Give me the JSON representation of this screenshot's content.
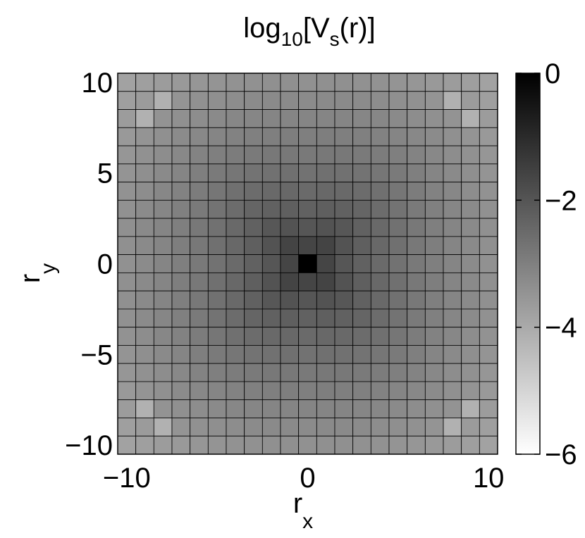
{
  "chart_data": {
    "type": "heatmap",
    "title": {
      "base": "log",
      "sub1": "10",
      "mid": "[V",
      "sub2": "s",
      "end": "(r)]"
    },
    "xlabel": {
      "base": "r",
      "sub": "x"
    },
    "ylabel": {
      "base": "r",
      "sub": "y"
    },
    "x_range": [
      -10,
      10
    ],
    "y_range": [
      -10,
      10
    ],
    "x_ticks": [
      {
        "value": -10,
        "label": "−10"
      },
      {
        "value": 0,
        "label": "0"
      },
      {
        "value": 10,
        "label": "10"
      }
    ],
    "y_ticks": [
      {
        "value": 10,
        "label": "10"
      },
      {
        "value": 5,
        "label": "5"
      },
      {
        "value": 0,
        "label": "0"
      },
      {
        "value": -5,
        "label": "−5"
      },
      {
        "value": -10,
        "label": "−10"
      }
    ],
    "colorbar": {
      "range": [
        -6,
        0
      ],
      "colormap": "gray (black = 0, white = −6)",
      "ticks": [
        {
          "value": 0,
          "label": "0"
        },
        {
          "value": -2,
          "label": "−2"
        },
        {
          "value": -4,
          "label": "−4"
        },
        {
          "value": -6,
          "label": "−6"
        }
      ]
    },
    "grid": true,
    "values_description": "log10[Vs(r)] on integer lattice r in [-10,10]^2; peak 0 at origin, decreasing with distance (approx. -1.7 near origin to about -4.5 at corners)"
  }
}
